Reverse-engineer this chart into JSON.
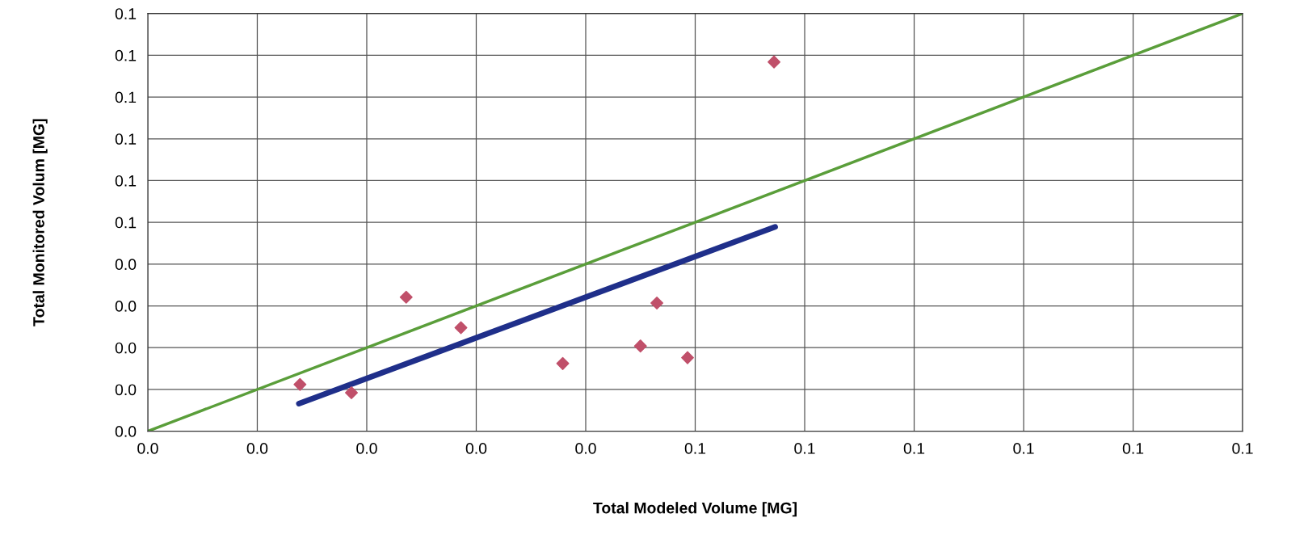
{
  "chart_data": {
    "type": "scatter",
    "xlabel": "Total Modeled Volume [MG]",
    "ylabel": "Total Monitored Volum [MG]",
    "xlim": [
      0,
      0.1
    ],
    "ylim": [
      0,
      0.1
    ],
    "xticks": [
      {
        "value": 0,
        "label": "0.0"
      },
      {
        "value": 0.01,
        "label": "0.0"
      },
      {
        "value": 0.02,
        "label": "0.0"
      },
      {
        "value": 0.03,
        "label": "0.0"
      },
      {
        "value": 0.04,
        "label": "0.0"
      },
      {
        "value": 0.05,
        "label": "0.1"
      },
      {
        "value": 0.06,
        "label": "0.1"
      },
      {
        "value": 0.07,
        "label": "0.1"
      },
      {
        "value": 0.08,
        "label": "0.1"
      },
      {
        "value": 0.09,
        "label": "0.1"
      },
      {
        "value": 0.1,
        "label": "0.1"
      }
    ],
    "yticks": [
      {
        "value": 0,
        "label": "0.0"
      },
      {
        "value": 0.01,
        "label": "0.0"
      },
      {
        "value": 0.02,
        "label": "0.0"
      },
      {
        "value": 0.03,
        "label": "0.0"
      },
      {
        "value": 0.04,
        "label": "0.0"
      },
      {
        "value": 0.05,
        "label": "0.1"
      },
      {
        "value": 0.06,
        "label": "0.1"
      },
      {
        "value": 0.07,
        "label": "0.1"
      },
      {
        "value": 0.08,
        "label": "0.1"
      },
      {
        "value": 0.09,
        "label": "0.1"
      },
      {
        "value": 0.1,
        "label": "0.1"
      }
    ],
    "grid": true,
    "legend": false,
    "series": [
      {
        "type": "line",
        "color": "#5a9e3a",
        "x": [
          0,
          0.1
        ],
        "values": [
          0,
          0.1
        ],
        "marker": "none",
        "line_style": "solid"
      },
      {
        "type": "line",
        "color": "#1f2f8a",
        "x": [
          0.0138,
          0.0573
        ],
        "values": [
          0.0066,
          0.0489
        ],
        "marker": "none",
        "line_style": "solid"
      },
      {
        "color": "#c0506a",
        "marker": "diamond",
        "x": [
          0.0139,
          0.0186,
          0.0236,
          0.0286,
          0.0379,
          0.045,
          0.0465,
          0.0493,
          0.0572
        ],
        "values": [
          0.0112,
          0.0092,
          0.0321,
          0.0248,
          0.0162,
          0.0204,
          0.0307,
          0.0176,
          0.0884
        ]
      }
    ]
  }
}
